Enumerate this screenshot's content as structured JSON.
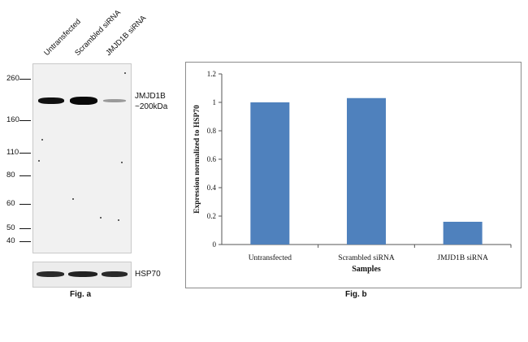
{
  "figure_a": {
    "lane_labels": [
      "Untransfected",
      "Scrambled siRNA",
      "JMJD1B siRNA"
    ],
    "mw_markers": [
      "260",
      "160",
      "110",
      "80",
      "60",
      "50",
      "40"
    ],
    "target_label_line1": "JMJD1B",
    "target_label_line2": "~200kDa",
    "loading_control_label": "HSP70",
    "caption": "Fig. a"
  },
  "figure_b": {
    "caption": "Fig. b"
  },
  "chart_data": {
    "type": "bar",
    "categories": [
      "Untransfected",
      "Scrambled siRNA",
      "JMJD1B siRNA"
    ],
    "values": [
      1.0,
      1.03,
      0.16
    ],
    "title": "",
    "xlabel": "Samples",
    "ylabel": "Expression normalized to HSP70",
    "ylim": [
      0,
      1.2
    ],
    "yticks": [
      "0",
      "0.2",
      "0.4",
      "0.6",
      "0.8",
      "1",
      "1.2"
    ],
    "bar_color": "#4f81bd",
    "grid": false,
    "legend": "none"
  }
}
